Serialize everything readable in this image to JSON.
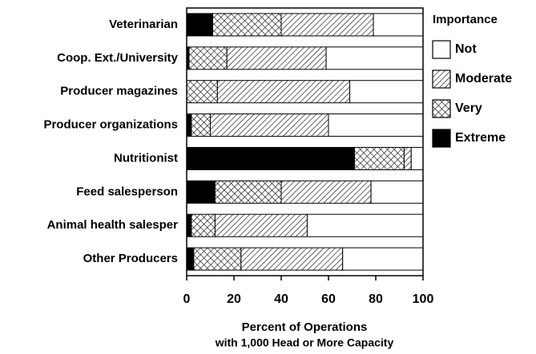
{
  "chart_data": {
    "type": "stacked_barh",
    "categories": [
      "Veterinarian",
      "Coop. Ext./University",
      "Producer magazines",
      "Producer organizations",
      "Nutritionist",
      "Feed salesperson",
      "Animal health salesper",
      "Other Producers"
    ],
    "series": [
      {
        "name": "Extreme",
        "color": "#000000",
        "pattern": "solid",
        "values": [
          11,
          1,
          0,
          2,
          71,
          12,
          2,
          3
        ]
      },
      {
        "name": "Very",
        "color": "#000000",
        "pattern": "crosshatch",
        "values": [
          29,
          16,
          13,
          8,
          21,
          28,
          10,
          20
        ]
      },
      {
        "name": "Moderate",
        "color": "#000000",
        "pattern": "diagonal",
        "values": [
          39,
          42,
          56,
          50,
          3,
          38,
          39,
          43
        ]
      },
      {
        "name": "Not",
        "color": "#ffffff",
        "pattern": "solid",
        "values": [
          21,
          41,
          31,
          40,
          5,
          22,
          49,
          34
        ]
      }
    ],
    "legend_title": "Importance",
    "legend": "right",
    "xlabel": [
      "Percent of Operations",
      "with 1,000 Head or More Capacity"
    ],
    "xlim": [
      0,
      100
    ],
    "xticks": [
      0,
      20,
      40,
      60,
      80,
      100
    ]
  }
}
